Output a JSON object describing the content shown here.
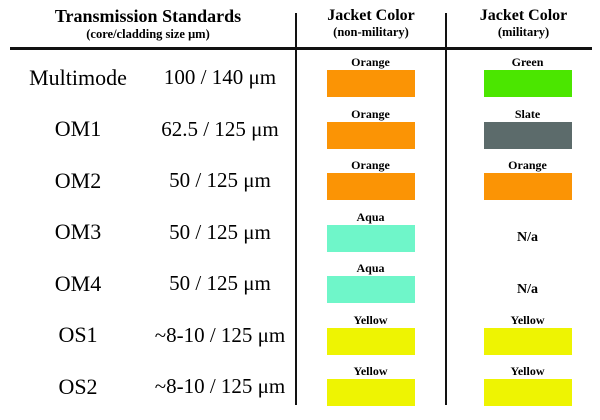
{
  "header": {
    "transmission": {
      "title": "Transmission Standards",
      "subtitle": "(core/cladding size μm)"
    },
    "jacket_non_military": {
      "title": "Jacket Color",
      "subtitle": "(non-military)"
    },
    "jacket_military": {
      "title": "Jacket Color",
      "subtitle": "(military)"
    }
  },
  "colors": {
    "orange": "#FB9405",
    "green": "#4BE600",
    "slate": "#5C6B6B",
    "aqua": "#6FF6C9",
    "yellow": "#EEF402",
    "line": "#121212"
  },
  "na_label": "N/a",
  "chart_data": {
    "type": "table",
    "columns": [
      "Transmission Standards (core/cladding size μm)",
      "Jacket Color (non-military)",
      "Jacket Color (military)"
    ],
    "rows": [
      {
        "standard": "Multimode",
        "size": "100 / 140 μm",
        "non_military": "Orange",
        "non_military_hex": "#FB9405",
        "military": "Green",
        "military_hex": "#4BE600"
      },
      {
        "standard": "OM1",
        "size": "62.5 / 125 μm",
        "non_military": "Orange",
        "non_military_hex": "#FB9405",
        "military": "Slate",
        "military_hex": "#5C6B6B"
      },
      {
        "standard": "OM2",
        "size": "50 / 125 μm",
        "non_military": "Orange",
        "non_military_hex": "#FB9405",
        "military": "Orange",
        "military_hex": "#FB9405"
      },
      {
        "standard": "OM3",
        "size": "50 / 125 μm",
        "non_military": "Aqua",
        "non_military_hex": "#6FF6C9",
        "military": "N/a",
        "military_hex": null
      },
      {
        "standard": "OM4",
        "size": "50 / 125 μm",
        "non_military": "Aqua",
        "non_military_hex": "#6FF6C9",
        "military": "N/a",
        "military_hex": null
      },
      {
        "standard": "OS1",
        "size": "~8-10 / 125 μm",
        "non_military": "Yellow",
        "non_military_hex": "#EEF402",
        "military": "Yellow",
        "military_hex": "#EEF402"
      },
      {
        "standard": "OS2",
        "size": "~8-10 / 125 μm",
        "non_military": "Yellow",
        "non_military_hex": "#EEF402",
        "military": "Yellow",
        "military_hex": "#EEF402"
      }
    ]
  }
}
